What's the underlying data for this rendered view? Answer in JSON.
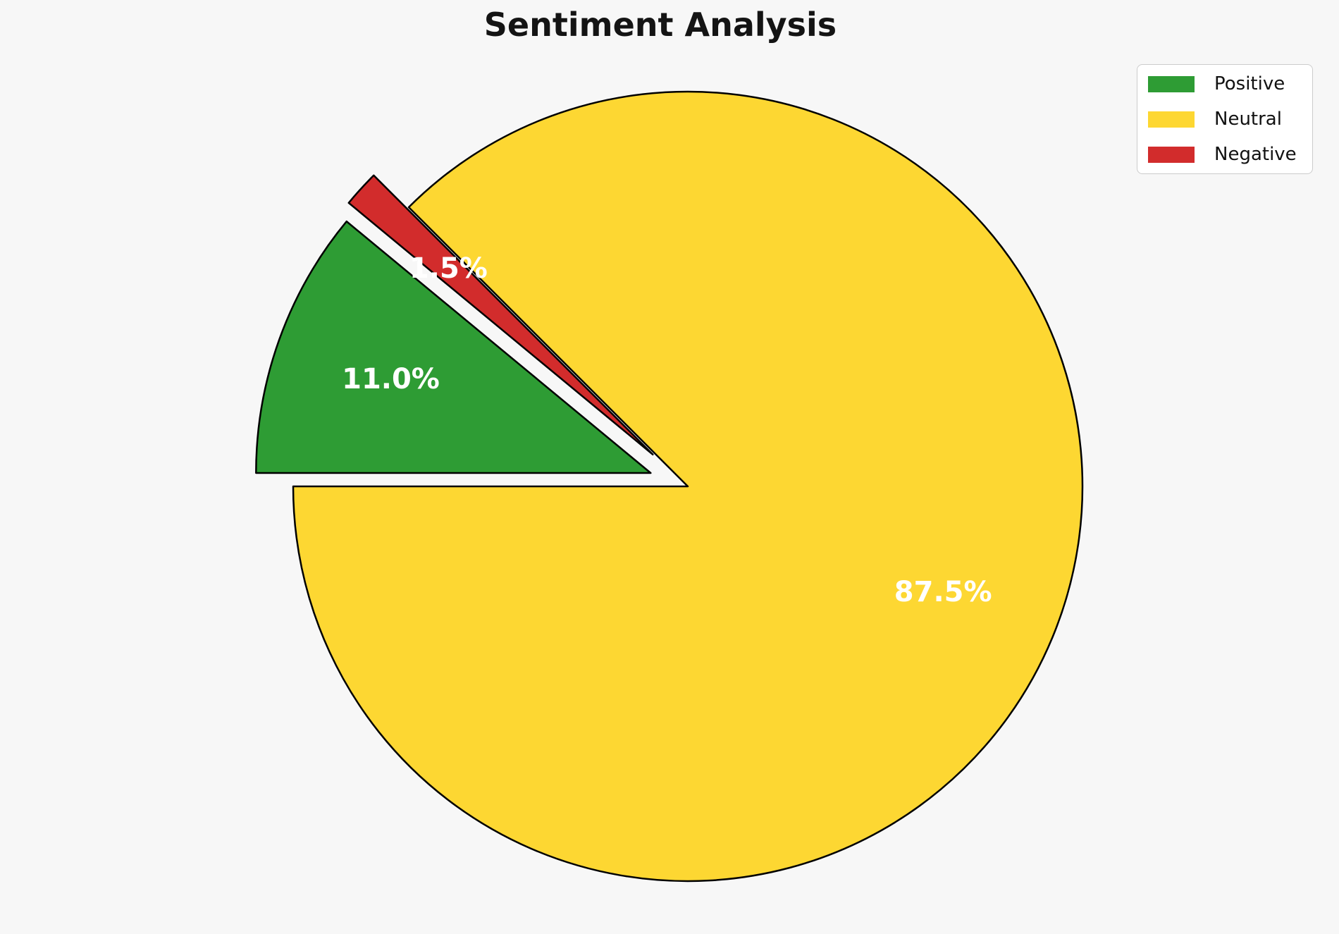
{
  "chart_data": {
    "type": "pie",
    "title": "Sentiment Analysis",
    "background_color": "#f7f7f7",
    "edge_color": "#000000",
    "edge_width": 2.5,
    "pct_label_color": "#ffffff",
    "pct_distance": 0.7,
    "start_angle": 180,
    "counterclockwise": true,
    "draw_order": [
      1,
      2,
      0
    ],
    "legend_position": "top-right",
    "slices": [
      {
        "label": "Positive",
        "value": 11.0,
        "pct_label": "11.0%",
        "color": "#2E9C34",
        "explode": 0.1
      },
      {
        "label": "Neutral",
        "value": 87.5,
        "pct_label": "87.5%",
        "color": "#FDD732",
        "explode": 0.0
      },
      {
        "label": "Negative",
        "value": 1.5,
        "pct_label": "1.5%",
        "color": "#D22C2C",
        "explode": 0.12
      }
    ]
  }
}
